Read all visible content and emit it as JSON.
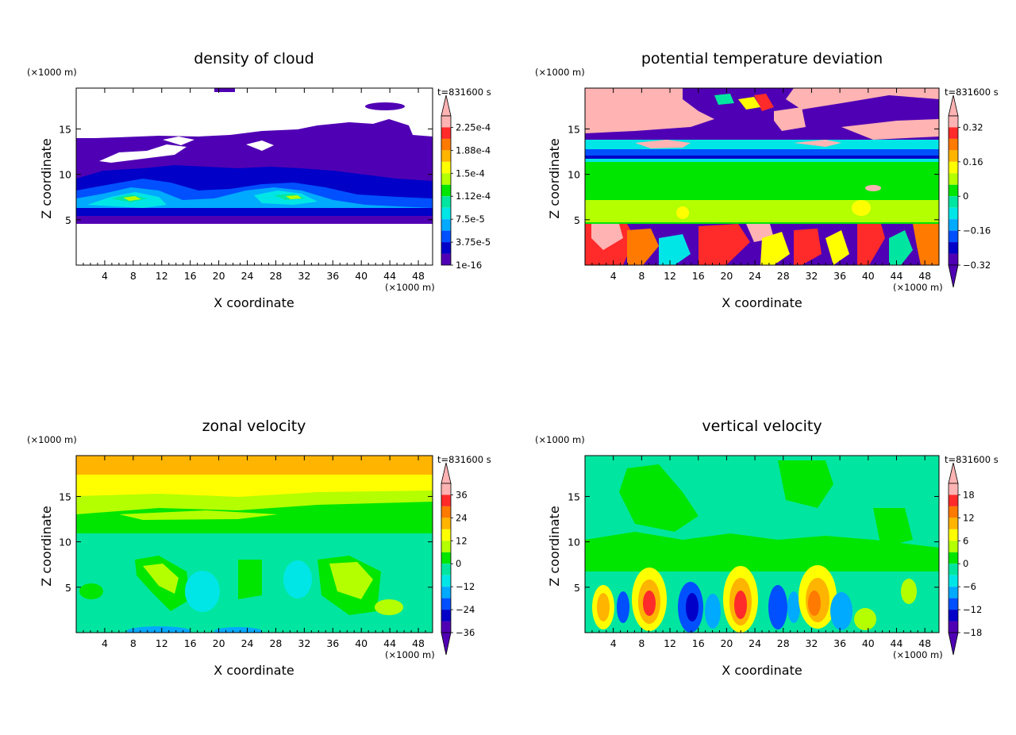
{
  "chart_data": [
    {
      "type": "heatmap",
      "title": "density of cloud",
      "xlabel": "X coordinate",
      "ylabel": "Z coordinate",
      "x_unit": "(×1000 m)",
      "y_unit": "(×1000 m)",
      "time_label": "t=831600 s",
      "xlim": [
        0,
        50
      ],
      "ylim": [
        0,
        19.5
      ],
      "xticks": [
        4,
        8,
        12,
        16,
        20,
        24,
        28,
        32,
        36,
        40,
        44,
        48
      ],
      "yticks": [
        5,
        10,
        15
      ],
      "colorbar_labels": [
        "2.25e-4",
        "1.88e-4",
        "1.5e-4",
        "1.12e-4",
        "7.5e-5",
        "3.75e-5",
        "1e-16"
      ],
      "colorbar_colors": [
        "#ffb3b3",
        "#ff2a2a",
        "#ff7a00",
        "#ffb400",
        "#ffff00",
        "#b4ff00",
        "#00e600",
        "#00e6a0",
        "#00e6e6",
        "#00aaff",
        "#0050ff",
        "#0000c8",
        "#5000b4"
      ],
      "colorbar_min_triangle": false
    },
    {
      "type": "heatmap",
      "title": "potential temperature deviation",
      "xlabel": "X coordinate",
      "ylabel": "Z coordinate",
      "x_unit": "(×1000 m)",
      "y_unit": "(×1000 m)",
      "time_label": "t=831600 s",
      "xlim": [
        0,
        50
      ],
      "ylim": [
        0,
        19.5
      ],
      "xticks": [
        4,
        8,
        12,
        16,
        20,
        24,
        28,
        32,
        36,
        40,
        44,
        48
      ],
      "yticks": [
        5,
        10,
        15
      ],
      "colorbar_labels": [
        "0.32",
        "0.16",
        "0",
        "−0.16",
        "−0.32"
      ],
      "colorbar_colors": [
        "#ffb3b3",
        "#ff2a2a",
        "#ff7a00",
        "#ffb400",
        "#ffff00",
        "#b4ff00",
        "#00e600",
        "#00e6a0",
        "#00e6e6",
        "#00aaff",
        "#0050ff",
        "#0000c8",
        "#5000b4"
      ],
      "colorbar_min_triangle": true
    },
    {
      "type": "heatmap",
      "title": "zonal velocity",
      "xlabel": "X coordinate",
      "ylabel": "Z coordinate",
      "x_unit": "(×1000 m)",
      "y_unit": "(×1000 m)",
      "time_label": "t=831600 s",
      "xlim": [
        0,
        50
      ],
      "ylim": [
        0,
        19.5
      ],
      "xticks": [
        4,
        8,
        12,
        16,
        20,
        24,
        28,
        32,
        36,
        40,
        44,
        48
      ],
      "yticks": [
        5,
        10,
        15
      ],
      "colorbar_labels": [
        "36",
        "24",
        "12",
        "0",
        "−12",
        "−24",
        "−36"
      ],
      "colorbar_colors": [
        "#ffb3b3",
        "#ff2a2a",
        "#ff7a00",
        "#ffb400",
        "#ffff00",
        "#b4ff00",
        "#00e600",
        "#00e6a0",
        "#00e6e6",
        "#00aaff",
        "#0050ff",
        "#0000c8",
        "#5000b4"
      ],
      "colorbar_min_triangle": true
    },
    {
      "type": "heatmap",
      "title": "vertical velocity",
      "xlabel": "X coordinate",
      "ylabel": "Z coordinate",
      "x_unit": "(×1000 m)",
      "y_unit": "(×1000 m)",
      "time_label": "t=831600 s",
      "xlim": [
        0,
        50
      ],
      "ylim": [
        0,
        19.5
      ],
      "xticks": [
        4,
        8,
        12,
        16,
        20,
        24,
        28,
        32,
        36,
        40,
        44,
        48
      ],
      "yticks": [
        5,
        10,
        15
      ],
      "colorbar_labels": [
        "18",
        "12",
        "6",
        "0",
        "−6",
        "−12",
        "−18"
      ],
      "colorbar_colors": [
        "#ffb3b3",
        "#ff2a2a",
        "#ff7a00",
        "#ffb400",
        "#ffff00",
        "#b4ff00",
        "#00e600",
        "#00e6a0",
        "#00e6e6",
        "#00aaff",
        "#0050ff",
        "#0000c8",
        "#5000b4"
      ],
      "colorbar_min_triangle": true
    }
  ]
}
